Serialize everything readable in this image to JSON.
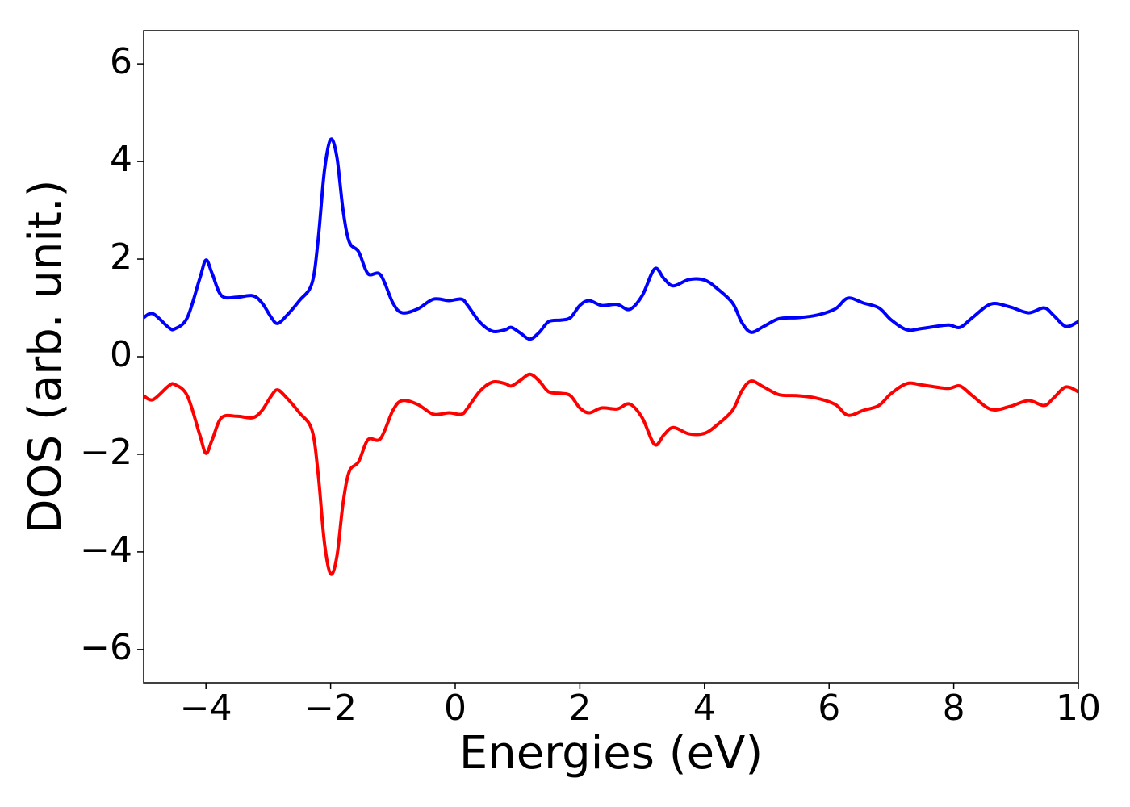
{
  "chart_data": {
    "type": "line",
    "x_label": "Energies (eV)",
    "y_label": "DOS (arb. unit.)",
    "x": [
      -5,
      -4.85,
      -4.6,
      -4.5,
      -4.3,
      -4.1,
      -4.0,
      -3.9,
      -3.75,
      -3.5,
      -3.25,
      -3.1,
      -2.95,
      -2.85,
      -2.7,
      -2.5,
      -2.3,
      -2.2,
      -2.1,
      -2.0,
      -1.9,
      -1.8,
      -1.7,
      -1.55,
      -1.4,
      -1.2,
      -1.0,
      -0.85,
      -0.6,
      -0.35,
      -0.1,
      0.1,
      0.2,
      0.4,
      0.6,
      0.8,
      0.9,
      1.05,
      1.2,
      1.35,
      1.5,
      1.7,
      1.85,
      2.0,
      2.15,
      2.35,
      2.6,
      2.8,
      3.0,
      3.2,
      3.35,
      3.5,
      3.75,
      4.0,
      4.2,
      4.45,
      4.6,
      4.75,
      4.95,
      5.2,
      5.5,
      5.8,
      6.1,
      6.3,
      6.55,
      6.8,
      7.0,
      7.25,
      7.5,
      7.9,
      8.1,
      8.3,
      8.6,
      8.9,
      9.2,
      9.45,
      9.6,
      9.8,
      10.0
    ],
    "series": [
      {
        "color": "#0000ff",
        "values": [
          0.8,
          0.88,
          0.6,
          0.57,
          0.8,
          1.6,
          1.98,
          1.7,
          1.25,
          1.22,
          1.25,
          1.1,
          0.8,
          0.68,
          0.85,
          1.15,
          1.5,
          2.4,
          3.8,
          4.45,
          4.1,
          3.0,
          2.35,
          2.15,
          1.7,
          1.68,
          1.1,
          0.9,
          0.98,
          1.18,
          1.15,
          1.18,
          1.05,
          0.7,
          0.52,
          0.55,
          0.6,
          0.48,
          0.36,
          0.5,
          0.72,
          0.75,
          0.8,
          1.05,
          1.15,
          1.05,
          1.07,
          0.97,
          1.25,
          1.8,
          1.6,
          1.45,
          1.58,
          1.57,
          1.4,
          1.1,
          0.7,
          0.5,
          0.62,
          0.78,
          0.8,
          0.85,
          0.98,
          1.2,
          1.1,
          1.0,
          0.75,
          0.55,
          0.58,
          0.65,
          0.6,
          0.8,
          1.08,
          1.02,
          0.9,
          1.0,
          0.85,
          0.62,
          0.72
        ]
      },
      {
        "color": "#ff0000",
        "values": [
          -0.8,
          -0.88,
          -0.6,
          -0.57,
          -0.8,
          -1.6,
          -1.98,
          -1.7,
          -1.25,
          -1.22,
          -1.25,
          -1.1,
          -0.8,
          -0.68,
          -0.85,
          -1.15,
          -1.5,
          -2.4,
          -3.8,
          -4.45,
          -4.1,
          -3.0,
          -2.35,
          -2.15,
          -1.7,
          -1.68,
          -1.1,
          -0.9,
          -0.98,
          -1.18,
          -1.15,
          -1.18,
          -1.05,
          -0.7,
          -0.52,
          -0.55,
          -0.6,
          -0.48,
          -0.36,
          -0.5,
          -0.72,
          -0.75,
          -0.8,
          -1.05,
          -1.15,
          -1.05,
          -1.07,
          -0.97,
          -1.25,
          -1.8,
          -1.6,
          -1.45,
          -1.58,
          -1.57,
          -1.4,
          -1.1,
          -0.7,
          -0.5,
          -0.62,
          -0.78,
          -0.8,
          -0.85,
          -0.98,
          -1.2,
          -1.1,
          -1.0,
          -0.75,
          -0.55,
          -0.58,
          -0.65,
          -0.6,
          -0.8,
          -1.08,
          -1.02,
          -0.9,
          -1.0,
          -0.85,
          -0.62,
          -0.72
        ]
      }
    ],
    "xlim": [
      -5,
      10
    ],
    "xticks": [
      {
        "value": -4,
        "label": "−4"
      },
      {
        "value": -2,
        "label": "−2"
      },
      0,
      2,
      4,
      6,
      8,
      10
    ],
    "ylim": [
      -6.68,
      6.68
    ],
    "yticks": [
      {
        "value": -6,
        "label": "−6"
      },
      {
        "value": -4,
        "label": "−4"
      },
      {
        "value": -2,
        "label": "−2"
      },
      0,
      2,
      4,
      6
    ],
    "grid": false
  }
}
